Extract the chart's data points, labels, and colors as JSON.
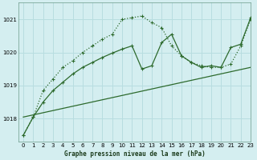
{
  "title": "Graphe pression niveau de la mer (hPa)",
  "bg_color": "#d4eef0",
  "grid_color": "#b8dde0",
  "line_color": "#2d6a2d",
  "xlim": [
    -0.5,
    23
  ],
  "ylim": [
    1017.3,
    1021.5
  ],
  "yticks": [
    1018,
    1019,
    1020,
    1021
  ],
  "xticks": [
    0,
    1,
    2,
    3,
    4,
    5,
    6,
    7,
    8,
    9,
    10,
    11,
    12,
    13,
    14,
    15,
    16,
    17,
    18,
    19,
    20,
    21,
    22,
    23
  ],
  "curve_peak_x": [
    0,
    1,
    2,
    3,
    4,
    5,
    6,
    7,
    8,
    9,
    10,
    11,
    12,
    13,
    14,
    15,
    16,
    17,
    18,
    19,
    20,
    21,
    22,
    23
  ],
  "curve_peak_y": [
    1017.5,
    1018.05,
    1018.85,
    1019.2,
    1019.55,
    1019.75,
    1020.0,
    1020.2,
    1020.4,
    1020.55,
    1021.0,
    1021.05,
    1021.1,
    1020.9,
    1020.75,
    1020.2,
    1019.9,
    1019.7,
    1019.6,
    1019.55,
    1019.55,
    1019.65,
    1020.2,
    1021.0
  ],
  "curve_solid_x": [
    0,
    1,
    2,
    3,
    4,
    5,
    6,
    7,
    8,
    9,
    10,
    11,
    12,
    13,
    14,
    15,
    16,
    17,
    18,
    19,
    20,
    21,
    22,
    23
  ],
  "curve_solid_y": [
    1017.5,
    1018.05,
    1018.5,
    1018.85,
    1019.1,
    1019.35,
    1019.55,
    1019.7,
    1019.85,
    1019.98,
    1020.1,
    1020.2,
    1019.5,
    1019.6,
    1020.3,
    1020.55,
    1019.9,
    1019.7,
    1019.55,
    1019.6,
    1019.55,
    1020.15,
    1020.25,
    1021.05
  ],
  "trend_x": [
    0,
    23
  ],
  "trend_y": [
    1018.05,
    1019.55
  ]
}
